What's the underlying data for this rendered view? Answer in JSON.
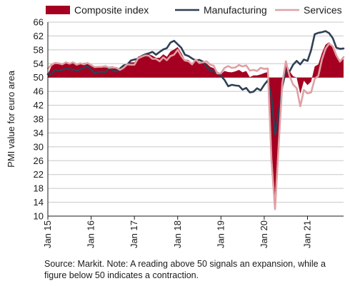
{
  "chart_data": {
    "type": "line",
    "ylabel": "PMI value for euro area",
    "xlabel": "",
    "ylim": [
      10,
      66
    ],
    "yticks": [
      10,
      14,
      18,
      22,
      26,
      30,
      34,
      38,
      42,
      46,
      50,
      54,
      58,
      62,
      66
    ],
    "xlim": [
      0,
      82
    ],
    "x_tick_labels": [
      {
        "label": "Jan 15",
        "x": 0
      },
      {
        "label": "Jan 16",
        "x": 12
      },
      {
        "label": "Jan 17",
        "x": 24
      },
      {
        "label": "Jan 18",
        "x": 36
      },
      {
        "label": "Jan 19",
        "x": 48
      },
      {
        "label": "Jan 20",
        "x": 60
      },
      {
        "label": "Jan 21",
        "x": 72
      }
    ],
    "baseline": 50,
    "grid": true,
    "legend": "top",
    "series": [
      {
        "name": "Composite index",
        "style": "area",
        "color": "#a50021",
        "values": [
          51.0,
          53.3,
          54.0,
          53.9,
          53.6,
          54.2,
          53.9,
          54.3,
          53.6,
          53.9,
          54.2,
          54.3,
          53.6,
          53.0,
          53.1,
          53.0,
          52.9,
          53.1,
          53.2,
          52.9,
          52.6,
          53.3,
          53.9,
          54.4,
          54.4,
          56.0,
          56.4,
          56.8,
          56.8,
          56.3,
          55.7,
          55.7,
          56.7,
          56.0,
          57.5,
          58.1,
          58.8,
          57.1,
          55.2,
          55.1,
          54.1,
          54.9,
          54.3,
          54.5,
          54.1,
          53.1,
          52.7,
          51.1,
          51.0,
          51.9,
          51.6,
          51.5,
          51.8,
          52.2,
          51.5,
          51.9,
          50.1,
          50.6,
          50.6,
          50.9,
          51.3,
          51.6,
          29.7,
          13.6,
          31.9,
          48.5,
          54.9,
          51.9,
          50.4,
          50.0,
          45.3,
          49.1,
          47.8,
          48.8,
          53.2,
          53.8,
          57.1,
          59.5,
          60.2,
          59.0,
          56.2,
          54.3,
          55.4
        ],
        "labels": [
          "Jan 15",
          "",
          "",
          "",
          "",
          "",
          "",
          "",
          "",
          "",
          "",
          "",
          "Jan 16",
          "",
          "",
          "",
          "",
          "",
          "",
          "",
          "",
          "",
          "",
          "",
          "Jan 17",
          "",
          "",
          "",
          "",
          "",
          "",
          "",
          "",
          "",
          "",
          "",
          "Jan 18",
          "",
          "",
          "",
          "",
          "",
          "",
          "",
          "",
          "",
          "",
          "",
          "Jan 19",
          "",
          "",
          "",
          "",
          "",
          "",
          "",
          "",
          "",
          "",
          "",
          "Jan 20",
          "",
          "",
          "",
          "",
          "",
          "",
          "",
          "",
          "",
          "",
          "",
          "Jan 21",
          "",
          "",
          "",
          "",
          "",
          "",
          "",
          "",
          "",
          ""
        ]
      },
      {
        "name": "Manufacturing",
        "style": "line",
        "color": "#2f3f55",
        "values": [
          51.0,
          51.0,
          52.2,
          52.0,
          52.2,
          52.5,
          52.4,
          52.3,
          52.0,
          52.3,
          52.8,
          53.2,
          52.3,
          51.2,
          51.6,
          51.7,
          51.5,
          52.8,
          52.0,
          51.7,
          52.6,
          53.5,
          53.7,
          54.9,
          55.2,
          55.4,
          56.2,
          56.7,
          57.0,
          57.4,
          56.6,
          57.4,
          58.1,
          58.5,
          60.1,
          60.6,
          59.6,
          58.6,
          56.6,
          56.2,
          55.5,
          54.9,
          55.1,
          54.6,
          53.2,
          52.0,
          51.8,
          51.4,
          50.5,
          49.3,
          47.5,
          47.9,
          47.7,
          47.6,
          46.5,
          47.0,
          45.7,
          45.9,
          46.9,
          46.3,
          47.9,
          49.2,
          44.5,
          33.4,
          39.4,
          47.4,
          51.8,
          51.7,
          53.7,
          54.8,
          53.8,
          55.2,
          54.8,
          57.9,
          62.5,
          62.9,
          63.1,
          63.4,
          62.8,
          61.4,
          58.6,
          58.3,
          58.4
        ],
        "labels": [
          "Jan 15",
          "",
          "",
          "",
          "",
          "",
          "",
          "",
          "",
          "",
          "",
          "",
          "Jan 16",
          "",
          "",
          "",
          "",
          "",
          "",
          "",
          "",
          "",
          "",
          "",
          "Jan 17",
          "",
          "",
          "",
          "",
          "",
          "",
          "",
          "",
          "",
          "",
          "",
          "Jan 18",
          "",
          "",
          "",
          "",
          "",
          "",
          "",
          "",
          "",
          "",
          "",
          "Jan 19",
          "",
          "",
          "",
          "",
          "",
          "",
          "",
          "",
          "",
          "",
          "",
          "Jan 20",
          "",
          "",
          "",
          "",
          "",
          "",
          "",
          "",
          "",
          "",
          "",
          "Jan 21",
          "",
          "",
          "",
          "",
          "",
          "",
          "",
          "",
          "",
          ""
        ]
      },
      {
        "name": "Services",
        "style": "line",
        "color": "#e0a0a4",
        "values": [
          52.6,
          53.7,
          54.2,
          54.1,
          53.8,
          54.4,
          54.0,
          54.4,
          53.7,
          54.1,
          53.8,
          54.2,
          53.6,
          53.0,
          53.1,
          53.1,
          53.3,
          52.8,
          52.9,
          52.8,
          52.2,
          52.8,
          53.8,
          53.7,
          53.7,
          55.5,
          56.0,
          56.4,
          56.3,
          55.4,
          55.4,
          54.7,
          55.8,
          55.0,
          56.2,
          56.6,
          58.0,
          56.2,
          54.9,
          54.7,
          53.8,
          55.2,
          54.2,
          54.4,
          54.7,
          53.7,
          53.4,
          51.2,
          51.2,
          52.8,
          53.3,
          52.8,
          52.9,
          53.6,
          53.2,
          53.5,
          52.0,
          52.2,
          51.9,
          52.8,
          52.5,
          52.6,
          26.4,
          12.0,
          30.5,
          48.3,
          54.7,
          50.5,
          48.0,
          46.9,
          41.7,
          46.4,
          45.4,
          45.7,
          49.6,
          50.5,
          55.2,
          58.3,
          59.8,
          59.0,
          56.4,
          54.6,
          55.9
        ],
        "labels": [
          "Jan 15",
          "",
          "",
          "",
          "",
          "",
          "",
          "",
          "",
          "",
          "",
          "",
          "Jan 16",
          "",
          "",
          "",
          "",
          "",
          "",
          "",
          "",
          "",
          "",
          "",
          "Jan 17",
          "",
          "",
          "",
          "",
          "",
          "",
          "",
          "",
          "",
          "",
          "",
          "Jan 18",
          "",
          "",
          "",
          "",
          "",
          "",
          "",
          "",
          "",
          "",
          "",
          "Jan 19",
          "",
          "",
          "",
          "",
          "",
          "",
          "",
          "",
          "",
          "",
          "",
          "Jan 20",
          "",
          "",
          "",
          "",
          "",
          "",
          "",
          "",
          "",
          "",
          "",
          "Jan 21",
          "",
          "",
          "",
          "",
          "",
          "",
          "",
          "",
          "",
          ""
        ]
      }
    ]
  },
  "footnote": "Source: Markit. Note: A reading above 50 signals an expansion, while a figure below 50 indicates a contraction."
}
